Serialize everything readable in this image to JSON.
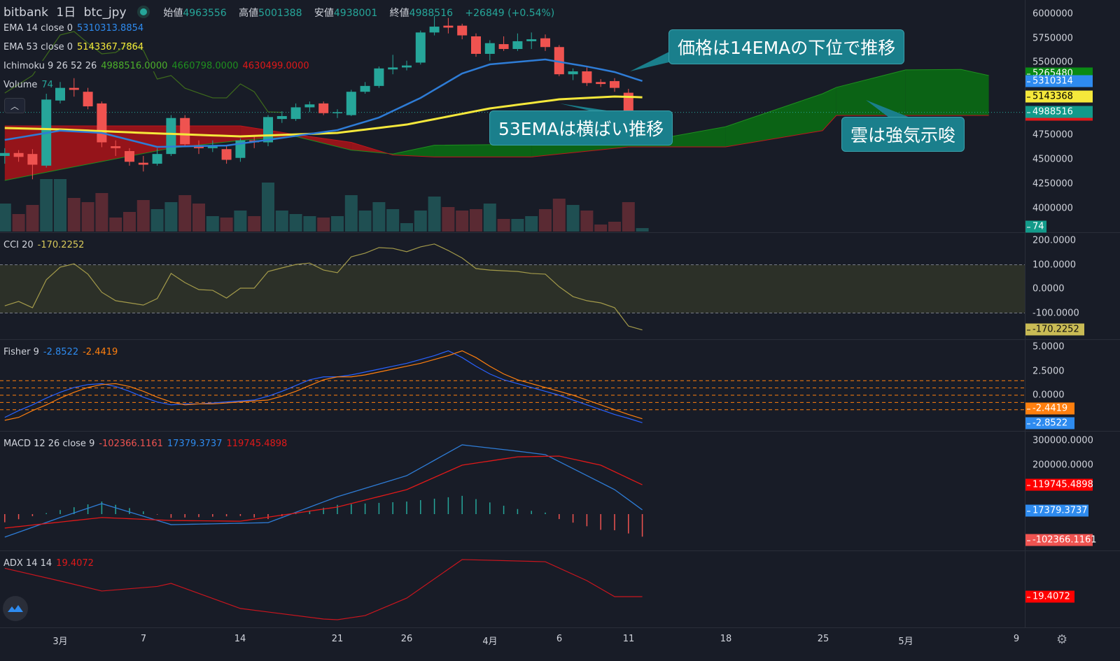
{
  "header": {
    "exchange": "bitbank",
    "interval": "1日",
    "symbol": "btc_jpy",
    "ohlc": [
      {
        "label": "始値",
        "value": "4963556"
      },
      {
        "label": "高値",
        "value": "5001388"
      },
      {
        "label": "安値",
        "value": "4938001"
      },
      {
        "label": "終値",
        "value": "4988516"
      }
    ],
    "change": "+26849 (+0.54%)"
  },
  "legends": {
    "ema14": {
      "label": "EMA 14 close 0",
      "value": "5310313.8854"
    },
    "ema53": {
      "label": "EMA 53 close 0",
      "value": "5143367.7864"
    },
    "ichimoku": {
      "label": "Ichimoku 9 26 52 26",
      "v1": "4988516.0000",
      "v2": "4660798.0000",
      "v3": "4630499.0000"
    },
    "volume": {
      "label": "Volume",
      "value": "74"
    },
    "cci": {
      "label": "CCI 20",
      "value": "-170.2252"
    },
    "fisher": {
      "label": "Fisher 9",
      "v1": "-2.8522",
      "v2": "-2.4419"
    },
    "macd": {
      "label": "MACD 12 26 close 9",
      "v1": "-102366.1161",
      "v2": "17379.3737",
      "v3": "119745.4898"
    },
    "adx": {
      "label": "ADX 14 14",
      "value": "19.4072"
    }
  },
  "annotations": [
    "価格は14EMAの下位で推移",
    "53EMAは横ばい推移",
    "雲は強気示唆"
  ],
  "price_axis": {
    "ticks": [
      "6000000",
      "5750000",
      "5500000",
      "4750000",
      "4500000",
      "4250000",
      "4000000"
    ],
    "badges": {
      "hidden": "5265480",
      "ema14": "5310314",
      "ema53": "5143368",
      "last": "4988516",
      "volume": "74"
    }
  },
  "cci_axis": {
    "ticks": [
      "200.0000",
      "100.0000",
      "0.0000",
      "-100.0000"
    ],
    "badge": "-170.2252"
  },
  "fisher_axis": {
    "ticks": [
      "5.0000",
      "2.5000",
      "0.0000"
    ],
    "badges": [
      "-2.4419",
      "-2.8522"
    ]
  },
  "macd_axis": {
    "ticks": [
      "300000.0000",
      "200000.0000"
    ],
    "badges": [
      "119745.4898",
      "17379.3737",
      "-102366.1161"
    ]
  },
  "adx_axis": {
    "badge": "19.4072"
  },
  "time_axis": [
    "3月",
    "7",
    "14",
    "21",
    "26",
    "4月",
    "6",
    "11",
    "18",
    "25",
    "5月",
    "9"
  ],
  "colors": {
    "up": "#26a69a",
    "down": "#ef5350",
    "ema14": "#2e7cd6",
    "ema53": "#f5e83b",
    "cloud_up": "#0a6b14",
    "cloud_down": "#a3141a",
    "lagging": "#3e6b1c",
    "cci": "#a39a4a",
    "fisher": "#2962ff",
    "trigger": "#ff7f0e",
    "macd": "#2e7cd6",
    "signal": "#e01919",
    "adx": "#c9151e",
    "callout": "#1a7f8c"
  },
  "icons": {
    "collapse": "chevron-up-icon",
    "logo": "tradingview-cloud-icon",
    "settings": "gear-icon",
    "status": "live-dot-icon"
  },
  "chart_data": {
    "type": "candlestick",
    "candles": [
      [
        "02-25",
        4540000,
        4620000,
        4460000,
        4570000,
        600
      ],
      [
        "02-26",
        4570000,
        4600000,
        4480000,
        4530000,
        375
      ],
      [
        "02-27",
        4560000,
        4610000,
        4300000,
        4450000,
        570
      ],
      [
        "02-28",
        4440000,
        5180000,
        4420000,
        5120000,
        1125
      ],
      [
        "03-01",
        5110000,
        5300000,
        5080000,
        5240000,
        1125
      ],
      [
        "03-02",
        5240000,
        5340000,
        5150000,
        5220000,
        720
      ],
      [
        "03-03",
        5200000,
        5240000,
        5020000,
        5050000,
        630
      ],
      [
        "03-04",
        5080000,
        5100000,
        4630000,
        4680000,
        825
      ],
      [
        "03-05",
        4640000,
        4700000,
        4540000,
        4620000,
        300
      ],
      [
        "03-06",
        4590000,
        4620000,
        4440000,
        4480000,
        420
      ],
      [
        "03-07",
        4470000,
        4540000,
        4380000,
        4450000,
        675
      ],
      [
        "03-08",
        4460000,
        4620000,
        4440000,
        4560000,
        480
      ],
      [
        "03-09",
        4560000,
        4960000,
        4540000,
        4930000,
        630
      ],
      [
        "03-10",
        4930000,
        4960000,
        4640000,
        4660000,
        780
      ],
      [
        "03-11",
        4650000,
        4700000,
        4560000,
        4620000,
        600
      ],
      [
        "03-12",
        4620000,
        4700000,
        4580000,
        4640000,
        330
      ],
      [
        "03-13",
        4610000,
        4640000,
        4460000,
        4500000,
        300
      ],
      [
        "03-14",
        4520000,
        4720000,
        4480000,
        4700000,
        450
      ],
      [
        "03-15",
        4700000,
        4740000,
        4620000,
        4680000,
        330
      ],
      [
        "03-16",
        4680000,
        4960000,
        4640000,
        4940000,
        1050
      ],
      [
        "03-17",
        4920000,
        5000000,
        4880000,
        4950000,
        450
      ],
      [
        "03-18",
        4920000,
        5080000,
        4900000,
        5040000,
        375
      ],
      [
        "03-19",
        5040000,
        5100000,
        4990000,
        5070000,
        330
      ],
      [
        "03-20",
        5080000,
        5100000,
        4960000,
        4980000,
        300
      ],
      [
        "03-21",
        4980000,
        5020000,
        4930000,
        4990000,
        330
      ],
      [
        "03-22",
        4960000,
        5220000,
        4950000,
        5200000,
        780
      ],
      [
        "03-23",
        5200000,
        5300000,
        5180000,
        5260000,
        450
      ],
      [
        "03-24",
        5260000,
        5460000,
        5240000,
        5440000,
        630
      ],
      [
        "03-25",
        5430000,
        5580000,
        5380000,
        5450000,
        480
      ],
      [
        "03-26",
        5450000,
        5520000,
        5420000,
        5470000,
        180
      ],
      [
        "03-27",
        5500000,
        5830000,
        5480000,
        5810000,
        450
      ],
      [
        "03-28",
        5810000,
        5980000,
        5780000,
        5870000,
        750
      ],
      [
        "03-29",
        5880000,
        5960000,
        5800000,
        5860000,
        525
      ],
      [
        "03-30",
        5880000,
        5900000,
        5740000,
        5780000,
        450
      ],
      [
        "03-31",
        5770000,
        5800000,
        5560000,
        5590000,
        480
      ],
      [
        "04-01",
        5590000,
        5730000,
        5520000,
        5700000,
        600
      ],
      [
        "04-02",
        5690000,
        5770000,
        5620000,
        5640000,
        270
      ],
      [
        "04-03",
        5640000,
        5800000,
        5620000,
        5720000,
        270
      ],
      [
        "04-04",
        5720000,
        5810000,
        5640000,
        5740000,
        330
      ],
      [
        "04-05",
        5750000,
        5790000,
        5620000,
        5660000,
        480
      ],
      [
        "04-06",
        5660000,
        5680000,
        5360000,
        5380000,
        705
      ],
      [
        "04-07",
        5380000,
        5440000,
        5320000,
        5410000,
        570
      ],
      [
        "04-08",
        5410000,
        5450000,
        5260000,
        5290000,
        450
      ],
      [
        "04-09",
        5300000,
        5330000,
        5250000,
        5280000,
        150
      ],
      [
        "04-10",
        5310000,
        5340000,
        5200000,
        5240000,
        210
      ],
      [
        "04-11",
        5190000,
        5230000,
        4930000,
        4960000,
        630
      ],
      [
        "04-12",
        4963556,
        5001388,
        4938001,
        4988516,
        74
      ]
    ],
    "ema14": [
      [
        "02-25",
        4705000
      ],
      [
        "03-01",
        4800000
      ],
      [
        "03-04",
        4777000
      ],
      [
        "03-08",
        4633000
      ],
      [
        "03-13",
        4647000
      ],
      [
        "03-17",
        4726000
      ],
      [
        "03-21",
        4806000
      ],
      [
        "03-24",
        4935000
      ],
      [
        "03-27",
        5137000
      ],
      [
        "03-30",
        5388000
      ],
      [
        "04-01",
        5482000
      ],
      [
        "04-05",
        5532000
      ],
      [
        "04-08",
        5460000
      ],
      [
        "04-10",
        5403000
      ],
      [
        "04-12",
        5310314
      ]
    ],
    "ema53": [
      [
        "02-25",
        4827000
      ],
      [
        "03-01",
        4813000
      ],
      [
        "03-07",
        4777000
      ],
      [
        "03-14",
        4741000
      ],
      [
        "03-21",
        4777000
      ],
      [
        "03-26",
        4863000
      ],
      [
        "04-01",
        5029000
      ],
      [
        "04-06",
        5122000
      ],
      [
        "04-10",
        5151000
      ],
      [
        "04-12",
        5143368
      ]
    ],
    "cloud": [
      [
        "02-25",
        4288000,
        4849000
      ],
      [
        "03-01",
        4400000,
        4849000
      ],
      [
        "03-09",
        4620000,
        4849000
      ],
      [
        "03-14",
        4700000,
        4849000
      ],
      [
        "03-18",
        4740000,
        4760000
      ],
      [
        "03-22",
        4600000,
        4680000
      ],
      [
        "03-25",
        4560000,
        4550000
      ],
      [
        "03-28",
        4650000,
        4530000
      ],
      [
        "04-04",
        4660000,
        4530000
      ],
      [
        "04-11",
        4660000,
        4633000
      ],
      [
        "04-18",
        4840000,
        4633000
      ],
      [
        "04-25",
        5180000,
        4800000
      ],
      [
        "04-26",
        5245000,
        4957000
      ],
      [
        "05-01",
        5425000,
        4957000
      ],
      [
        "05-05",
        5430000,
        4957000
      ],
      [
        "05-07",
        5367000,
        4957000
      ]
    ],
    "lagging": [
      [
        "02-25",
        5187000
      ],
      [
        "02-27",
        5367000
      ],
      [
        "03-01",
        5784000
      ],
      [
        "03-02",
        5820000
      ],
      [
        "03-03",
        5700000
      ],
      [
        "03-04",
        5590000
      ],
      [
        "03-05",
        5604000
      ],
      [
        "03-06",
        5698000
      ],
      [
        "03-07",
        5626000
      ],
      [
        "03-08",
        5331000
      ],
      [
        "03-09",
        5367000
      ],
      [
        "03-10",
        5237000
      ],
      [
        "03-11",
        5187000
      ],
      [
        "03-12",
        5137000
      ],
      [
        "03-13",
        5137000
      ],
      [
        "03-14",
        5281000
      ],
      [
        "03-15",
        5200000
      ],
      [
        "03-16",
        4993000
      ],
      [
        "03-17",
        4988516
      ]
    ],
    "cci": [
      -70,
      -52,
      -78,
      38,
      90,
      104,
      61,
      -14,
      -49,
      -58,
      -67,
      -40,
      64,
      26,
      -3,
      -6,
      -38,
      3,
      3,
      72,
      87,
      101,
      107,
      78,
      67,
      133,
      148,
      171,
      168,
      154,
      174,
      186,
      159,
      128,
      84,
      78,
      75,
      72,
      64,
      61,
      9,
      -32,
      -49,
      -58,
      -78,
      -154,
      -170.2252
    ],
    "fisher": [
      -2.3,
      -1.6,
      -1.0,
      -0.3,
      0.3,
      0.8,
      1.1,
      1.2,
      0.9,
      0.4,
      -0.2,
      -0.7,
      -1.0,
      -0.9,
      -0.9,
      -0.8,
      -0.7,
      -0.6,
      -0.5,
      -0.1,
      0.4,
      1.0,
      1.6,
      1.9,
      1.9,
      2.1,
      2.4,
      2.7,
      3.0,
      3.3,
      3.7,
      4.1,
      4.6,
      3.9,
      3.0,
      2.2,
      1.6,
      1.2,
      0.8,
      0.4,
      0.0,
      -0.5,
      -1.0,
      -1.5,
      -2.0,
      -2.4,
      -2.8522
    ],
    "trigger": [
      -2.6,
      -2.3,
      -1.6,
      -1.0,
      -0.3,
      0.3,
      0.8,
      1.1,
      1.2,
      0.9,
      0.4,
      -0.2,
      -0.7,
      -1.0,
      -0.9,
      -0.9,
      -0.8,
      -0.7,
      -0.6,
      -0.5,
      -0.1,
      0.4,
      1.0,
      1.6,
      1.9,
      1.9,
      2.1,
      2.4,
      2.7,
      3.0,
      3.3,
      3.7,
      4.1,
      4.6,
      3.9,
      3.0,
      2.2,
      1.6,
      1.2,
      0.8,
      0.4,
      0.0,
      -0.5,
      -1.0,
      -1.5,
      -2.0,
      -2.4419
    ],
    "macd": [
      [
        "02-25",
        -94000
      ],
      [
        "03-01",
        -14000
      ],
      [
        "03-04",
        43000
      ],
      [
        "03-09",
        -43000
      ],
      [
        "03-16",
        -35000
      ],
      [
        "03-21",
        71000
      ],
      [
        "03-26",
        157000
      ],
      [
        "03-30",
        283000
      ],
      [
        "04-03",
        257000
      ],
      [
        "04-05",
        243000
      ],
      [
        "04-07",
        186000
      ],
      [
        "04-10",
        100000
      ],
      [
        "04-12",
        17379
      ]
    ],
    "signal": [
      [
        "02-25",
        -57000
      ],
      [
        "03-04",
        -14000
      ],
      [
        "03-09",
        -26000
      ],
      [
        "03-14",
        -29000
      ],
      [
        "03-21",
        29000
      ],
      [
        "03-26",
        100000
      ],
      [
        "03-30",
        200000
      ],
      [
        "04-03",
        234000
      ],
      [
        "04-06",
        237000
      ],
      [
        "04-09",
        200000
      ],
      [
        "04-12",
        119745
      ]
    ],
    "adx": [
      [
        "02-25",
        35
      ],
      [
        "03-01",
        28
      ],
      [
        "03-04",
        22.5
      ],
      [
        "03-08",
        25
      ],
      [
        "03-09",
        26.7
      ],
      [
        "03-14",
        12.9
      ],
      [
        "03-20",
        7.1
      ],
      [
        "03-21",
        6.7
      ],
      [
        "03-23",
        9
      ],
      [
        "03-26",
        18.6
      ],
      [
        "03-30",
        39.8
      ],
      [
        "04-05",
        38.6
      ],
      [
        "04-08",
        28.2
      ],
      [
        "04-10",
        19.4
      ],
      [
        "04-12",
        19.4
      ]
    ],
    "cci_levels": [
      100,
      -100
    ],
    "fisher_levels": [
      1.5,
      0.75,
      0,
      -0.75,
      -1.5
    ],
    "price_range": [
      3800000,
      6150000
    ]
  }
}
